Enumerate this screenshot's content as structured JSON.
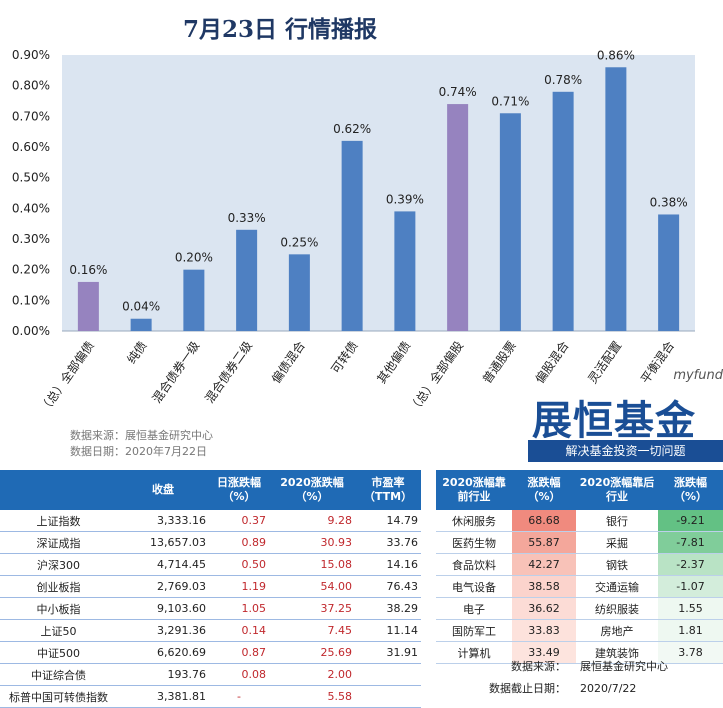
{
  "title": "7月23日  行情播报",
  "chart_data": {
    "type": "bar",
    "categories": [
      "（总）全部偏债",
      "纯债",
      "混合债券一级",
      "混合债券二级",
      "偏债混合",
      "可转债",
      "其他偏债",
      "（总）全部偏股",
      "普通股票",
      "偏股混合",
      "灵活配置",
      "平衡混合"
    ],
    "values": [
      0.16,
      0.04,
      0.2,
      0.33,
      0.25,
      0.62,
      0.39,
      0.74,
      0.71,
      0.78,
      0.86,
      0.38
    ],
    "data_labels": [
      "0.16%",
      "0.04%",
      "0.20%",
      "0.33%",
      "0.25%",
      "0.62%",
      "0.39%",
      "0.74%",
      "0.71%",
      "0.78%",
      "0.86%",
      "0.38%"
    ],
    "highlight": [
      true,
      false,
      false,
      false,
      false,
      false,
      false,
      true,
      false,
      false,
      false,
      false
    ],
    "y_ticks": [
      "0.00%",
      "0.10%",
      "0.20%",
      "0.30%",
      "0.40%",
      "0.50%",
      "0.60%",
      "0.70%",
      "0.80%",
      "0.90%"
    ],
    "ylim": [
      0,
      0.9
    ],
    "grid": false,
    "colors": {
      "bar": "#4e80c2",
      "highlight": "#9683bf",
      "plot_bg": "#dbe5f1"
    }
  },
  "source": {
    "line1": "数据来源：展恒基金研究中心",
    "line2": "数据日期：2020年7月22日"
  },
  "logo": {
    "small": "myfund",
    "big": "展恒基金",
    "slogan": "解决基金投资一切问题"
  },
  "table_left": {
    "headers": [
      "",
      "收盘",
      "日涨跌幅（%）",
      "2020涨跌幅（%）",
      "市盈率（TTM）"
    ],
    "rows": [
      [
        "上证指数",
        "3,333.16",
        "0.37",
        "9.28",
        "14.79"
      ],
      [
        "深证成指",
        "13,657.03",
        "0.89",
        "30.93",
        "33.76"
      ],
      [
        "沪深300",
        "4,714.45",
        "0.50",
        "15.08",
        "14.16"
      ],
      [
        "创业板指",
        "2,769.03",
        "1.19",
        "54.00",
        "76.43"
      ],
      [
        "中小板指",
        "9,103.60",
        "1.05",
        "37.25",
        "38.29"
      ],
      [
        "上证50",
        "3,291.36",
        "0.14",
        "7.45",
        "11.14"
      ],
      [
        "中证500",
        "6,620.69",
        "0.87",
        "25.69",
        "31.91"
      ],
      [
        "中证综合债",
        "193.76",
        "0.08",
        "2.00",
        ""
      ],
      [
        "标普中国可转债指数",
        "3,381.81",
        "-",
        "5.58",
        ""
      ]
    ]
  },
  "table_right": {
    "headers": [
      "2020涨幅靠前行业",
      "涨跌幅（%）",
      "2020涨幅靠后行业",
      "涨跌幅（%）"
    ],
    "rows": [
      [
        "休闲服务",
        "68.68",
        "银行",
        "-9.21"
      ],
      [
        "医药生物",
        "55.87",
        "采掘",
        "-7.81"
      ],
      [
        "食品饮料",
        "42.27",
        "钢铁",
        "-2.37"
      ],
      [
        "电气设备",
        "38.58",
        "交通运输",
        "-1.07"
      ],
      [
        "电子",
        "36.62",
        "纺织服装",
        "1.55"
      ],
      [
        "国防军工",
        "33.83",
        "房地产",
        "1.81"
      ],
      [
        "计算机",
        "33.49",
        "建筑装饰",
        "3.78"
      ]
    ],
    "top_colors": [
      "#f08a7e",
      "#f4a79b",
      "#f8c2b8",
      "#fbd3cc",
      "#fcdcd6",
      "#fde2dc",
      "#fde4de"
    ],
    "bottom_colors": [
      "#63c184",
      "#80cd9a",
      "#b9e3c5",
      "#d3eddb",
      "#eef8f1",
      "#eef8f1",
      "#f2f9f4"
    ]
  },
  "footer": {
    "source_label": "数据来源：",
    "source_value": "展恒基金研究中心",
    "date_label": "数据截止日期：",
    "date_value": "2020/7/22"
  }
}
